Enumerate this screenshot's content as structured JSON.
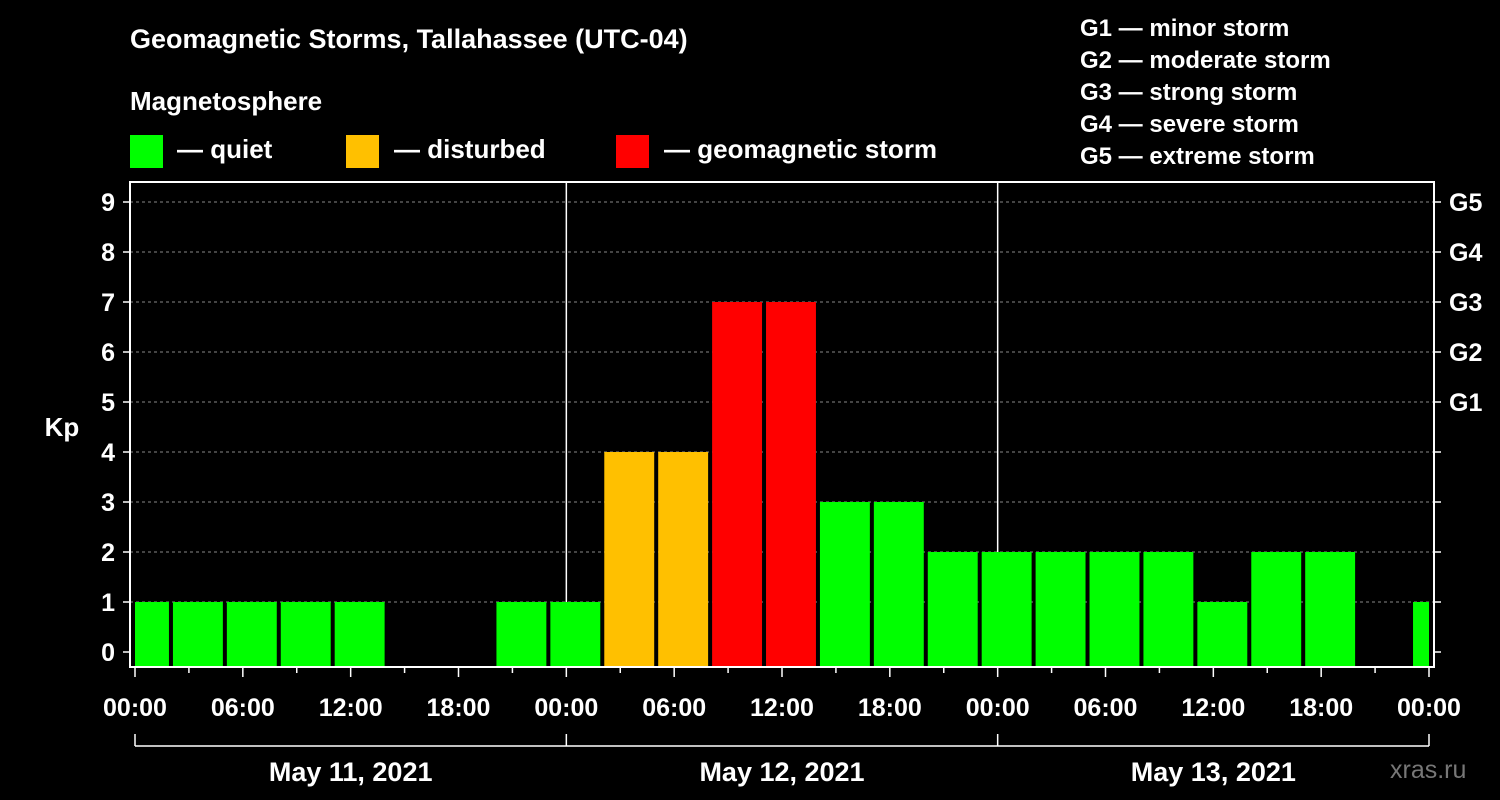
{
  "title": "Geomagnetic Storms, Tallahassee (UTC-04)",
  "subtitle": "Magnetosphere",
  "legend": [
    {
      "label": "— quiet",
      "color": "#00ff00"
    },
    {
      "label": "— disturbed",
      "color": "#ffc000"
    },
    {
      "label": "— geomagnetic storm",
      "color": "#ff0000"
    }
  ],
  "g_scale": [
    "G1 — minor storm",
    "G2 — moderate storm",
    "G3 — strong storm",
    "G4 — severe storm",
    "G5 — extreme storm"
  ],
  "watermark": "xras.ru",
  "chart_data": {
    "type": "bar",
    "ylabel": "Kp",
    "ylim": [
      0,
      9
    ],
    "yticks": [
      0,
      1,
      2,
      3,
      4,
      5,
      6,
      7,
      8,
      9
    ],
    "right_ticks": [
      {
        "y": 5,
        "label": "G1"
      },
      {
        "y": 6,
        "label": "G2"
      },
      {
        "y": 7,
        "label": "G3"
      },
      {
        "y": 8,
        "label": "G4"
      },
      {
        "y": 9,
        "label": "G5"
      }
    ],
    "xlim_hours": [
      0,
      72
    ],
    "x_tick_labels": [
      "00:00",
      "06:00",
      "12:00",
      "18:00",
      "00:00",
      "06:00",
      "12:00",
      "18:00",
      "00:00",
      "06:00",
      "12:00",
      "18:00",
      "00:00"
    ],
    "days": [
      "May 11, 2021",
      "May 12, 2021",
      "May 13, 2021"
    ],
    "grid": true,
    "colors": {
      "quiet": "#00ff00",
      "disturbed": "#ffc000",
      "storm": "#ff0000"
    },
    "bars": [
      {
        "start": "May 11, 2021 00:00",
        "kp": 1,
        "level": "quiet"
      },
      {
        "start": "May 11, 2021 02:00",
        "kp": 1,
        "level": "quiet"
      },
      {
        "start": "May 11, 2021 05:00",
        "kp": 1,
        "level": "quiet"
      },
      {
        "start": "May 11, 2021 08:00",
        "kp": 1,
        "level": "quiet"
      },
      {
        "start": "May 11, 2021 11:00",
        "kp": 1,
        "level": "quiet"
      },
      {
        "start": "May 11, 2021 14:00",
        "kp": 0,
        "level": "quiet"
      },
      {
        "start": "May 11, 2021 17:00",
        "kp": 0,
        "level": "quiet"
      },
      {
        "start": "May 11, 2021 20:00",
        "kp": 1,
        "level": "quiet"
      },
      {
        "start": "May 11, 2021 23:00",
        "kp": 1,
        "level": "quiet"
      },
      {
        "start": "May 12, 2021 02:00",
        "kp": 4,
        "level": "disturbed"
      },
      {
        "start": "May 12, 2021 05:00",
        "kp": 4,
        "level": "disturbed"
      },
      {
        "start": "May 12, 2021 08:00",
        "kp": 7,
        "level": "storm"
      },
      {
        "start": "May 12, 2021 11:00",
        "kp": 7,
        "level": "storm"
      },
      {
        "start": "May 12, 2021 14:00",
        "kp": 3,
        "level": "quiet"
      },
      {
        "start": "May 12, 2021 17:00",
        "kp": 3,
        "level": "quiet"
      },
      {
        "start": "May 12, 2021 20:00",
        "kp": 2,
        "level": "quiet"
      },
      {
        "start": "May 12, 2021 23:00",
        "kp": 2,
        "level": "quiet"
      },
      {
        "start": "May 13, 2021 02:00",
        "kp": 2,
        "level": "quiet"
      },
      {
        "start": "May 13, 2021 05:00",
        "kp": 2,
        "level": "quiet"
      },
      {
        "start": "May 13, 2021 08:00",
        "kp": 2,
        "level": "quiet"
      },
      {
        "start": "May 13, 2021 11:00",
        "kp": 1,
        "level": "quiet"
      },
      {
        "start": "May 13, 2021 14:00",
        "kp": 2,
        "level": "quiet"
      },
      {
        "start": "May 13, 2021 17:00",
        "kp": 2,
        "level": "quiet"
      },
      {
        "start": "May 13, 2021 20:00",
        "kp": 0,
        "level": "quiet"
      },
      {
        "start": "May 13, 2021 23:00",
        "kp": 1,
        "level": "quiet"
      }
    ]
  }
}
